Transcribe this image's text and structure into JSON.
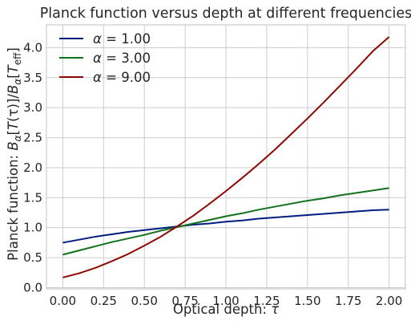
{
  "chart_data": {
    "type": "line",
    "title": "Planck function versus depth at different frequencies",
    "xlabel": {
      "prefix": "Optical depth: ",
      "symbol": "τ"
    },
    "ylabel": {
      "prefix": "Planck function: ",
      "B1": "B",
      "sub1": "α",
      "mid": "[",
      "T": "T",
      "tauParen": "(τ)]/",
      "B2": "B",
      "sub2": "α",
      "mid2": "[",
      "T2": "T",
      "sub3": "eff",
      "end": "]"
    },
    "xlim": [
      -0.1,
      2.1
    ],
    "ylim": [
      -0.02,
      4.38
    ],
    "xticks": [
      0.0,
      0.25,
      0.5,
      0.75,
      1.0,
      1.25,
      1.5,
      1.75,
      2.0
    ],
    "xtick_labels": [
      "0.00",
      "0.25",
      "0.50",
      "0.75",
      "1.00",
      "1.25",
      "1.50",
      "1.75",
      "2.00"
    ],
    "yticks": [
      0.0,
      0.5,
      1.0,
      1.5,
      2.0,
      2.5,
      3.0,
      3.5,
      4.0
    ],
    "ytick_labels": [
      "0.0",
      "0.5",
      "1.0",
      "1.5",
      "2.0",
      "2.5",
      "3.0",
      "3.5",
      "4.0"
    ],
    "grid": true,
    "legend_placement": "top-left",
    "x": [
      0.0,
      0.1,
      0.2,
      0.3,
      0.4,
      0.5,
      0.6,
      0.7,
      0.8,
      0.9,
      1.0,
      1.1,
      1.2,
      1.3,
      1.4,
      1.5,
      1.6,
      1.7,
      1.8,
      1.9,
      2.0
    ],
    "series": [
      {
        "name": "α = 1.00",
        "symbol": "α",
        "eq": " = ",
        "value": "1.00",
        "color": "#001c7f",
        "values": [
          0.75,
          0.8,
          0.85,
          0.89,
          0.93,
          0.96,
          0.99,
          1.02,
          1.05,
          1.07,
          1.1,
          1.12,
          1.15,
          1.17,
          1.19,
          1.21,
          1.23,
          1.25,
          1.27,
          1.29,
          1.3
        ]
      },
      {
        "name": "α = 3.00",
        "symbol": "α",
        "eq": " = ",
        "value": "3.00",
        "color": "#12711c",
        "values": [
          0.55,
          0.62,
          0.69,
          0.76,
          0.82,
          0.88,
          0.95,
          1.01,
          1.07,
          1.13,
          1.19,
          1.24,
          1.3,
          1.35,
          1.4,
          1.45,
          1.49,
          1.54,
          1.58,
          1.62,
          1.66
        ]
      },
      {
        "name": "α = 9.00",
        "symbol": "α",
        "eq": " = ",
        "value": "9.00",
        "color": "#8c0800",
        "values": [
          0.17,
          0.24,
          0.33,
          0.44,
          0.56,
          0.7,
          0.85,
          1.02,
          1.2,
          1.4,
          1.61,
          1.83,
          2.06,
          2.3,
          2.56,
          2.82,
          3.09,
          3.37,
          3.65,
          3.94,
          4.18
        ]
      }
    ]
  }
}
